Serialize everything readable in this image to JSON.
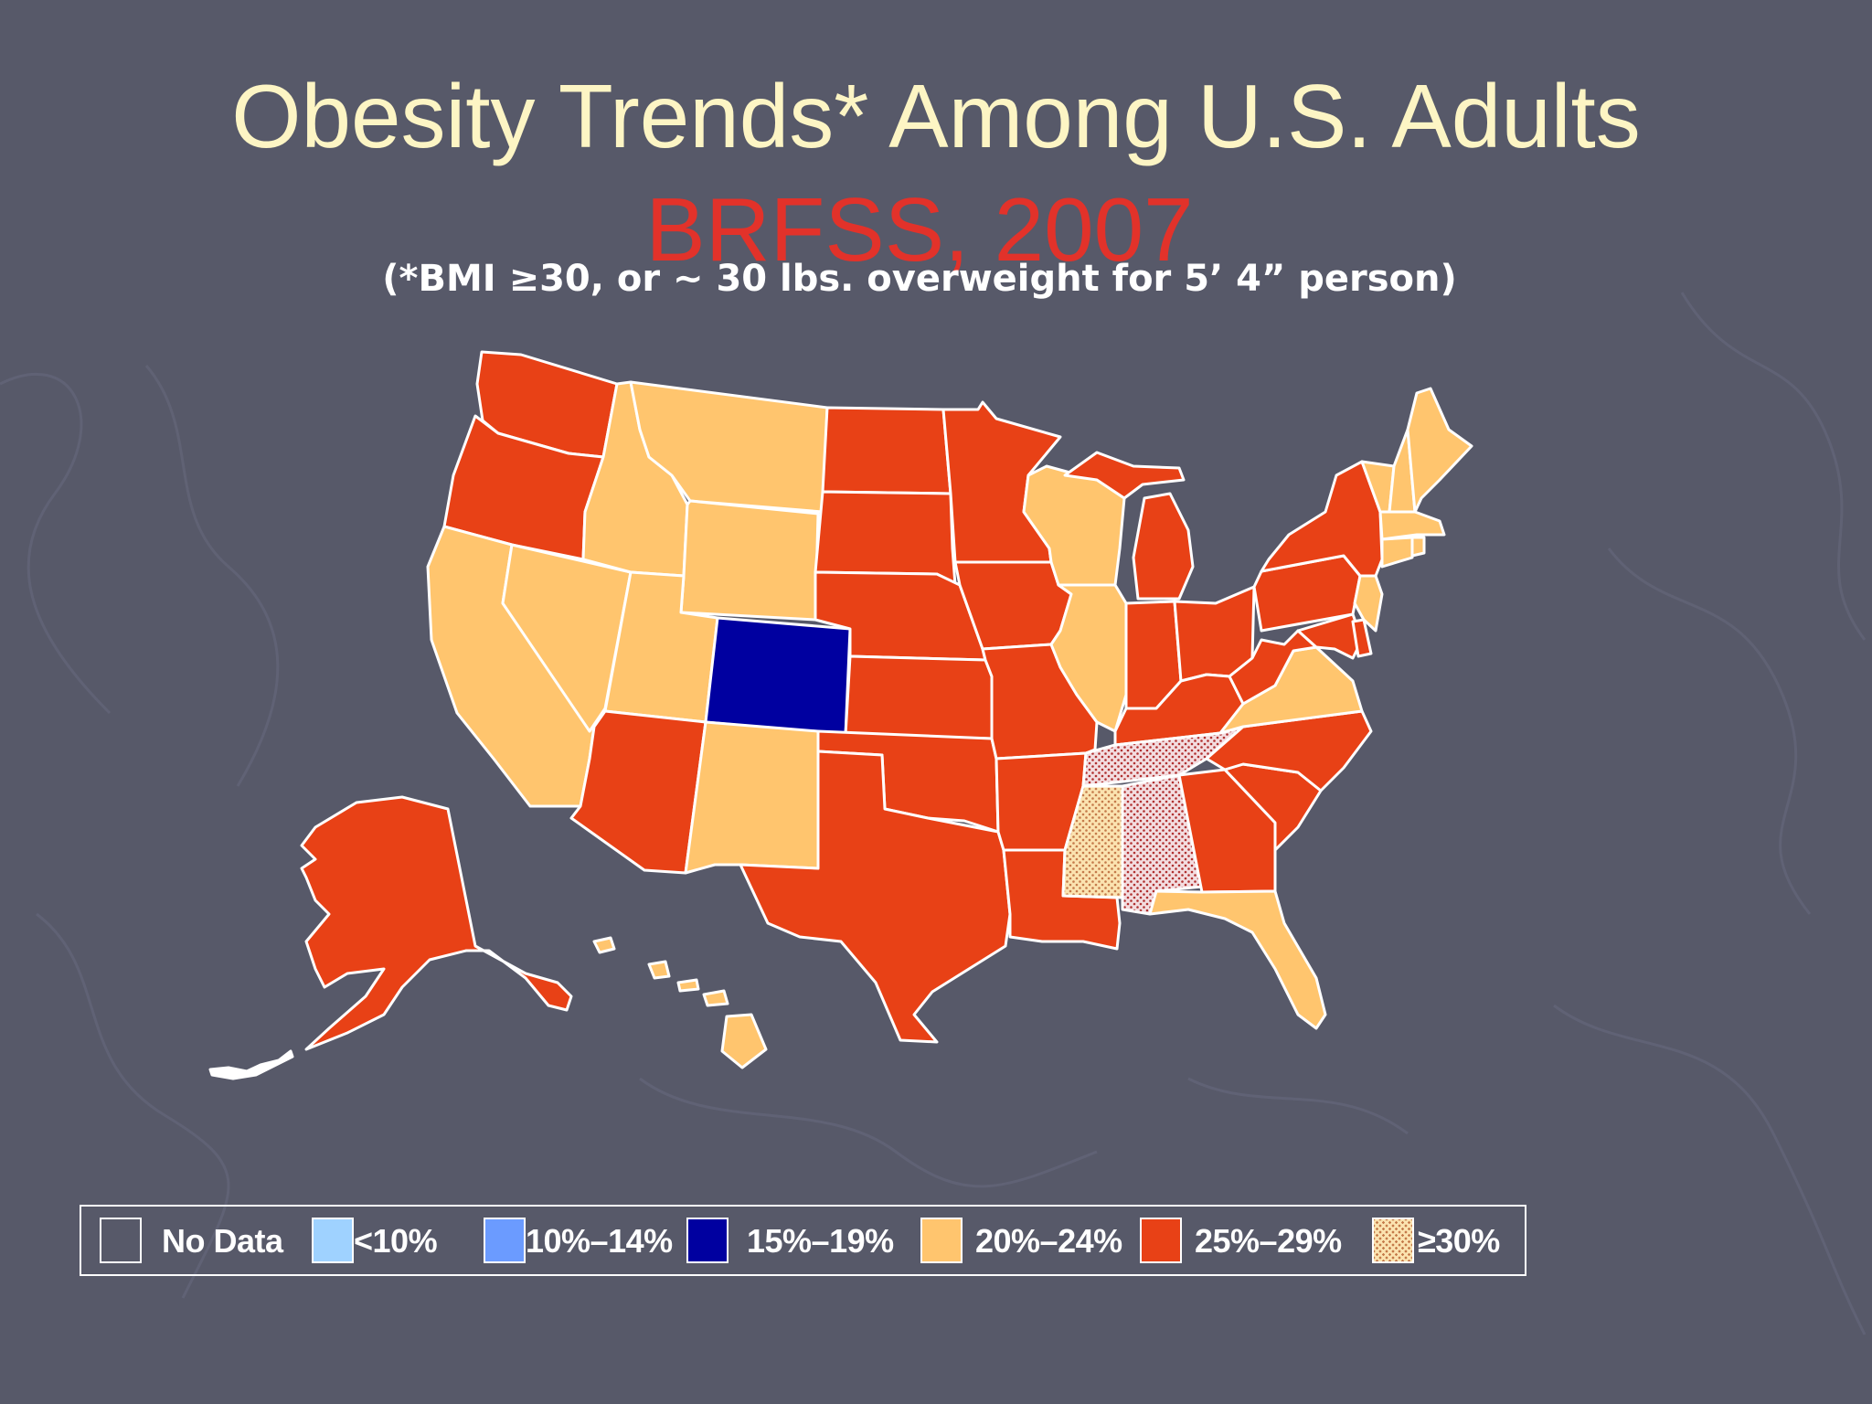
{
  "slide": {
    "title": "Obesity Trends* Among U.S. Adults",
    "subtitle": "BRFSS, 2007",
    "footnote": "(*BMI ≥30, or ~ 30 lbs. overweight for 5’ 4” person)"
  },
  "colors": {
    "background": "#575969",
    "title": "#fdf5c4",
    "subtitle": "#e2322a",
    "no_data": "#575969",
    "lt10": "#9fd2ff",
    "10_14": "#6b9bff",
    "15_19": "#0000a0",
    "20_24": "#ffc56e",
    "25_29": "#e84116",
    "gte30": "#fbe3b0"
  },
  "legend": {
    "items": [
      {
        "label": "No Data",
        "color": "#575969",
        "pattern": "none"
      },
      {
        "label": "<10%",
        "color": "#9fd2ff",
        "pattern": "none"
      },
      {
        "label": "10%–14%",
        "color": "#6b9bff",
        "pattern": "none"
      },
      {
        "label": "15%–19%",
        "color": "#0000a0",
        "pattern": "none"
      },
      {
        "label": "20%–24%",
        "color": "#ffc56e",
        "pattern": "none"
      },
      {
        "label": "25%–29%",
        "color": "#e84116",
        "pattern": "none"
      },
      {
        "label": "≥30%",
        "color": "#fbe3b0",
        "pattern": "dots"
      }
    ]
  },
  "map_data": {
    "categories": {
      "15–19%": [
        "Colorado"
      ],
      "20–24%": [
        "California",
        "Nevada",
        "Utah",
        "Idaho",
        "Montana",
        "Wyoming",
        "New Mexico",
        "Wisconsin",
        "Illinois",
        "Virginia",
        "Florida",
        "Hawaii",
        "Maine",
        "New Hampshire",
        "Vermont",
        "Massachusetts",
        "Connecticut",
        "Rhode Island",
        "New Jersey"
      ],
      "25–29%": [
        "Washington",
        "Oregon",
        "Arizona",
        "Alaska",
        "North Dakota",
        "South Dakota",
        "Nebraska",
        "Kansas",
        "Oklahoma",
        "Texas",
        "Minnesota",
        "Iowa",
        "Missouri",
        "Arkansas",
        "Louisiana",
        "Michigan",
        "Indiana",
        "Ohio",
        "Kentucky",
        "West Virginia",
        "Pennsylvania",
        "New York",
        "North Carolina",
        "South Carolina",
        "Georgia",
        "Maryland",
        "Delaware"
      ],
      "≥30%": [
        "Mississippi",
        "Alabama",
        "Tennessee"
      ]
    }
  }
}
